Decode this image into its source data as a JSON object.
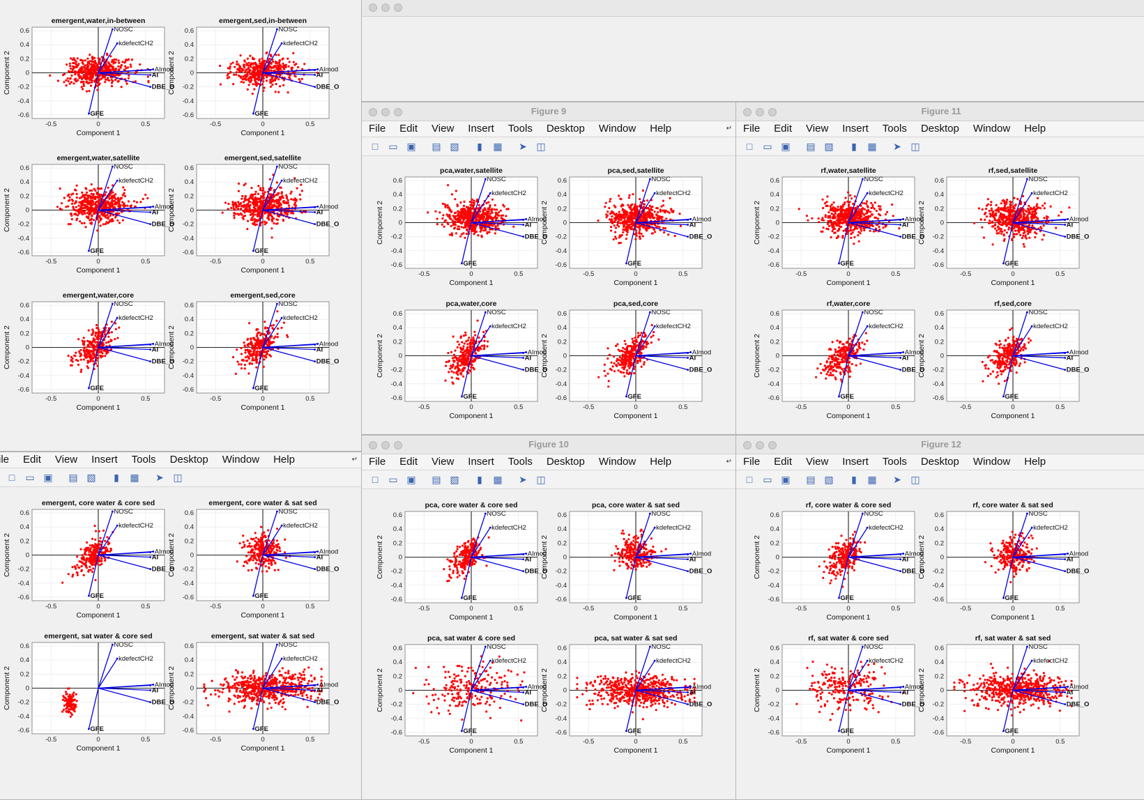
{
  "menu": [
    "File",
    "Edit",
    "View",
    "Insert",
    "Tools",
    "Desktop",
    "Window",
    "Help"
  ],
  "menu_partial": [
    "ile",
    "Edit",
    "View",
    "Insert",
    "Tools",
    "Desktop",
    "Window",
    "Help"
  ],
  "toolbar_icons": [
    "new-file-icon",
    "open-folder-icon",
    "save-icon",
    "print-icon",
    "print-preview-icon",
    "colorbar-icon",
    "legend-icon",
    "pointer-icon",
    "dock-icon"
  ],
  "axes": {
    "xlabel": "Component 1",
    "ylabel": "Component 2",
    "xticks": [
      "-0.5",
      "0",
      "0.5"
    ],
    "yticks": [
      "0.6",
      "0.4",
      "0.2",
      "0",
      "-0.2",
      "-0.4",
      "-0.6"
    ]
  },
  "loadings": [
    "NOSC",
    "kdefectCH2",
    "AImod",
    "DBE",
    "AI",
    "DBE_O",
    "GFE"
  ],
  "windows": {
    "tl": {
      "title": "",
      "plots": [
        "emergent,water,in-between",
        "emergent,sed,in-between",
        "emergent,water,satellite",
        "emergent,sed,satellite",
        "emergent,water,core",
        "emergent,sed,core"
      ]
    },
    "tr": {
      "title": ""
    },
    "fig9": {
      "title": "Figure 9",
      "plots": [
        "pca,water,satellite",
        "pca,sed,satellite",
        "pca,water,core",
        "pca,sed,core"
      ]
    },
    "fig11": {
      "title": "Figure 11",
      "plots": [
        "rf,water,satellite",
        "rf,sed,satellite",
        "rf,water,core",
        "rf,sed,core"
      ]
    },
    "bl": {
      "title": "",
      "plots": [
        "emergent, core water & core sed",
        "emergent, core water & sat sed",
        "emergent, sat water & core sed",
        "emergent, sat water & sat sed"
      ]
    },
    "fig10": {
      "title": "Figure 10",
      "plots": [
        "pca, core water & core sed",
        "pca, core water & sat sed",
        "pca, sat water & core sed",
        "pca, sat water & sat sed"
      ]
    },
    "fig12": {
      "title": "Figure 12",
      "plots": [
        "rf, core water & core sed",
        "rf, core water & sat sed",
        "rf, sat water & core sed",
        "rf, sat water & sat sed"
      ]
    }
  },
  "colors": {
    "scatter": "#ff0000",
    "loading": "#0000e6",
    "axis": "#222222"
  }
}
